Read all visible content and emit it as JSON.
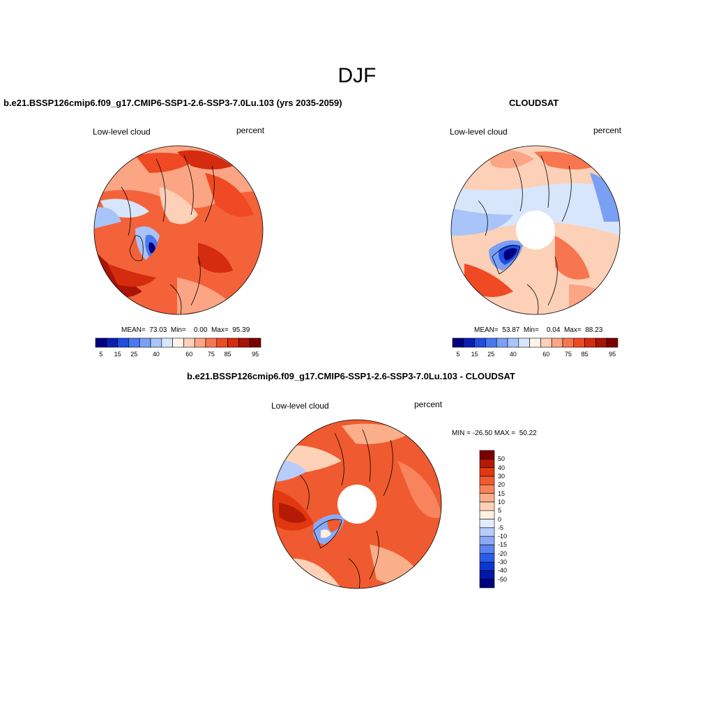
{
  "page": {
    "season_title": "DJF"
  },
  "panels": [
    {
      "id": "model",
      "title": "b.e21.BSSP126cmip6.f09_g17.CMIP6-SSP1-2.6-SSP3-7.0Lu.103 (yrs 2035-2059)",
      "left_label": "Low-level cloud",
      "right_label": "percent",
      "stats": "MEAN=  73.03  Min=    0.00  Max=  95.39"
    },
    {
      "id": "obs",
      "title": "CLOUDSAT",
      "left_label": "Low-level cloud",
      "right_label": "percent",
      "stats": "MEAN=  53.87  Min=    0.04  Max=  88.23"
    },
    {
      "id": "diff",
      "title": "b.e21.BSSP126cmip6.f09_g17.CMIP6-SSP1-2.6-SSP3-7.0Lu.103 - CLOUDSAT",
      "left_label": "Low-level cloud",
      "right_label": "percent",
      "stats": "MIN = -26.50 MAX =  50.22"
    }
  ],
  "colorbars": {
    "horizontal": {
      "colors": [
        "#00007f",
        "#0a1fb0",
        "#1f4fe0",
        "#4a78f0",
        "#7aa0f5",
        "#a8c4f8",
        "#d8e6fc",
        "#fff2e6",
        "#fdd0b8",
        "#fba585",
        "#f7764f",
        "#f04a24",
        "#d52b0f",
        "#a81405",
        "#7a0000"
      ],
      "tick_labels": [
        "5",
        "15",
        "25",
        "40",
        "60",
        "75",
        "85",
        "95"
      ]
    },
    "vertical": {
      "colors": [
        "#00007f",
        "#0018a8",
        "#0a36d0",
        "#2a5ce8",
        "#5a84f2",
        "#8aaaf6",
        "#b8ccfa",
        "#e2ecfd",
        "#fff0e0",
        "#fdd2b6",
        "#fbae8a",
        "#f7845c",
        "#f05a30",
        "#e2380f",
        "#b41a05",
        "#7a0000"
      ],
      "tick_labels": [
        "-50",
        "-40",
        "-30",
        "-20",
        "-15",
        "-10",
        "-5",
        "0",
        "5",
        "10",
        "15",
        "20",
        "30",
        "40",
        "50"
      ]
    }
  }
}
